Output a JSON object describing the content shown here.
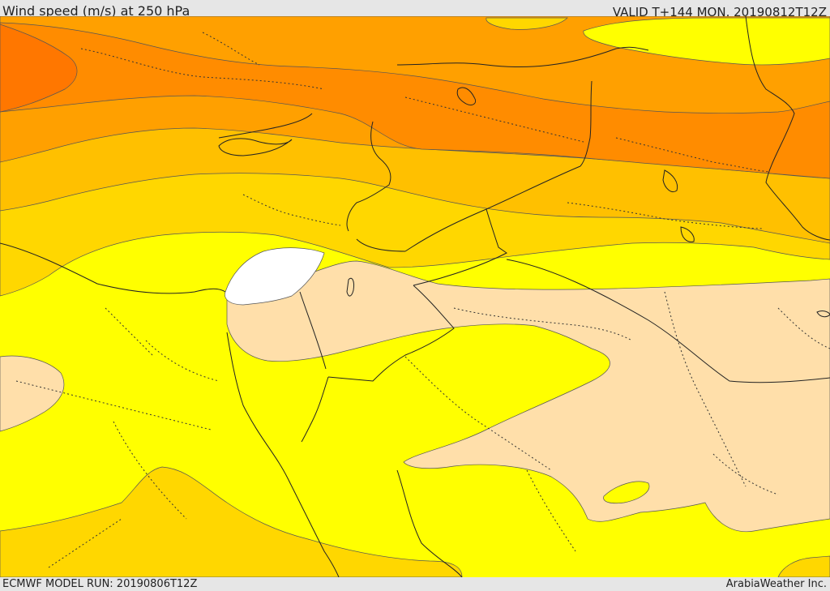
{
  "header": {
    "title": "Wind speed (m/s) at 250 hPa",
    "valid": "VALID T+144 MON. 20190812T12Z"
  },
  "footer": {
    "model_run": "ECMWF MODEL RUN: 20190806T12Z",
    "credit": "ArabiaWeather Inc."
  },
  "map": {
    "variable": "wind speed",
    "level": "250 hPa",
    "units": "m/s",
    "shading_colors": {
      "white": "#ffffff",
      "lightest": "#ffdfaa",
      "yellow": "#ffff00",
      "gold": "#ffd700",
      "amber": "#ffc000",
      "orange": "#ffa000",
      "dark_orange": "#ff8c00",
      "red_orange": "#ff7700"
    },
    "borders": "country boundaries (solid), province boundaries (dotted)"
  }
}
